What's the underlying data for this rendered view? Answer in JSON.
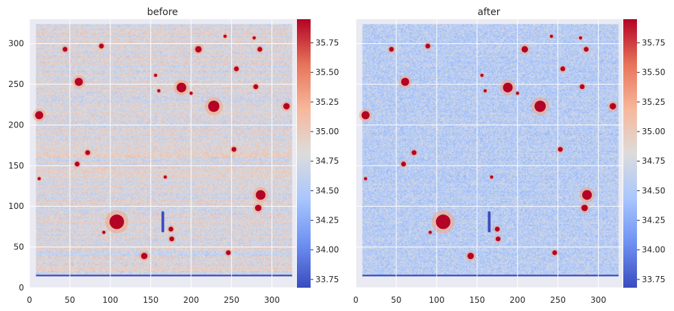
{
  "chart_data": [
    {
      "type": "heatmap",
      "title": "before",
      "xlabel": "",
      "ylabel": "",
      "xlim": [
        0,
        330
      ],
      "ylim": [
        0,
        330
      ],
      "x_ticks": [
        0,
        50,
        100,
        150,
        200,
        250,
        300
      ],
      "y_ticks": [
        0,
        50,
        100,
        150,
        200,
        250,
        300
      ],
      "grid": true,
      "colormap": "coolwarm",
      "colorbar": {
        "range": [
          33.68,
          35.95
        ],
        "ticks": [
          "33.75",
          "34.00",
          "34.25",
          "34.50",
          "34.75",
          "35.00",
          "35.25",
          "35.50",
          "35.75"
        ]
      },
      "image_extent": {
        "x": [
          8,
          325
        ],
        "y": [
          14,
          324
        ]
      },
      "background_level": 34.8,
      "sources": [
        {
          "x": 108,
          "y": 81,
          "r": 9
        },
        {
          "x": 228,
          "y": 223,
          "r": 7
        },
        {
          "x": 188,
          "y": 246,
          "r": 6
        },
        {
          "x": 286,
          "y": 114,
          "r": 6
        },
        {
          "x": 12,
          "y": 212,
          "r": 5
        },
        {
          "x": 61,
          "y": 253,
          "r": 5
        },
        {
          "x": 318,
          "y": 223,
          "r": 4
        },
        {
          "x": 209,
          "y": 293,
          "r": 4
        },
        {
          "x": 142,
          "y": 39,
          "r": 4
        },
        {
          "x": 283,
          "y": 98,
          "r": 4
        },
        {
          "x": 44,
          "y": 293,
          "r": 3
        },
        {
          "x": 285,
          "y": 293,
          "r": 3
        },
        {
          "x": 256,
          "y": 269,
          "r": 3
        },
        {
          "x": 280,
          "y": 247,
          "r": 3
        },
        {
          "x": 175,
          "y": 72,
          "r": 3
        },
        {
          "x": 59,
          "y": 152,
          "r": 3
        },
        {
          "x": 72,
          "y": 166,
          "r": 3
        },
        {
          "x": 253,
          "y": 170,
          "r": 3
        },
        {
          "x": 246,
          "y": 43,
          "r": 3
        },
        {
          "x": 176,
          "y": 60,
          "r": 3
        },
        {
          "x": 89,
          "y": 297,
          "r": 3
        },
        {
          "x": 92,
          "y": 68,
          "r": 2
        },
        {
          "x": 168,
          "y": 136,
          "r": 2
        },
        {
          "x": 278,
          "y": 307,
          "r": 2
        },
        {
          "x": 242,
          "y": 309,
          "r": 2
        },
        {
          "x": 156,
          "y": 261,
          "r": 2
        },
        {
          "x": 160,
          "y": 242,
          "r": 2
        },
        {
          "x": 12,
          "y": 134,
          "r": 2
        },
        {
          "x": 200,
          "y": 239,
          "r": 2
        }
      ],
      "dark_streak": {
        "x": 165,
        "y": [
          68,
          94
        ]
      }
    },
    {
      "type": "heatmap",
      "title": "after",
      "xlabel": "",
      "ylabel": "",
      "xlim": [
        0,
        330
      ],
      "ylim": [
        0,
        330
      ],
      "x_ticks": [
        0,
        50,
        100,
        150,
        200,
        250,
        300
      ],
      "y_ticks": [],
      "grid": true,
      "colormap": "coolwarm",
      "colorbar": {
        "range": [
          33.68,
          35.95
        ],
        "ticks": [
          "33.75",
          "34.00",
          "34.25",
          "34.50",
          "34.75",
          "35.00",
          "35.25",
          "35.50",
          "35.75"
        ]
      },
      "image_extent": {
        "x": [
          8,
          325
        ],
        "y": [
          14,
          324
        ]
      },
      "background_level": 34.55,
      "sources": [
        {
          "x": 108,
          "y": 81,
          "r": 9
        },
        {
          "x": 228,
          "y": 223,
          "r": 7
        },
        {
          "x": 188,
          "y": 246,
          "r": 6
        },
        {
          "x": 286,
          "y": 114,
          "r": 6
        },
        {
          "x": 12,
          "y": 212,
          "r": 5
        },
        {
          "x": 61,
          "y": 253,
          "r": 5
        },
        {
          "x": 318,
          "y": 223,
          "r": 4
        },
        {
          "x": 209,
          "y": 293,
          "r": 4
        },
        {
          "x": 142,
          "y": 39,
          "r": 4
        },
        {
          "x": 283,
          "y": 98,
          "r": 4
        },
        {
          "x": 44,
          "y": 293,
          "r": 3
        },
        {
          "x": 285,
          "y": 293,
          "r": 3
        },
        {
          "x": 256,
          "y": 269,
          "r": 3
        },
        {
          "x": 280,
          "y": 247,
          "r": 3
        },
        {
          "x": 175,
          "y": 72,
          "r": 3
        },
        {
          "x": 59,
          "y": 152,
          "r": 3
        },
        {
          "x": 72,
          "y": 166,
          "r": 3
        },
        {
          "x": 253,
          "y": 170,
          "r": 3
        },
        {
          "x": 246,
          "y": 43,
          "r": 3
        },
        {
          "x": 176,
          "y": 60,
          "r": 3
        },
        {
          "x": 89,
          "y": 297,
          "r": 3
        },
        {
          "x": 92,
          "y": 68,
          "r": 2
        },
        {
          "x": 168,
          "y": 136,
          "r": 2
        },
        {
          "x": 278,
          "y": 307,
          "r": 2
        },
        {
          "x": 242,
          "y": 309,
          "r": 2
        },
        {
          "x": 156,
          "y": 261,
          "r": 2
        },
        {
          "x": 160,
          "y": 242,
          "r": 2
        },
        {
          "x": 12,
          "y": 134,
          "r": 2
        },
        {
          "x": 200,
          "y": 239,
          "r": 2
        }
      ],
      "dark_streak": {
        "x": 165,
        "y": [
          68,
          94
        ]
      }
    }
  ],
  "colors": {
    "axes_background": "#eaeaf2",
    "grid": "#ffffff",
    "colormap_stops": [
      "#3b4cc0",
      "#6f92f3",
      "#aac7fd",
      "#dddcdc",
      "#f7b89c",
      "#e7745b",
      "#b40426"
    ]
  }
}
